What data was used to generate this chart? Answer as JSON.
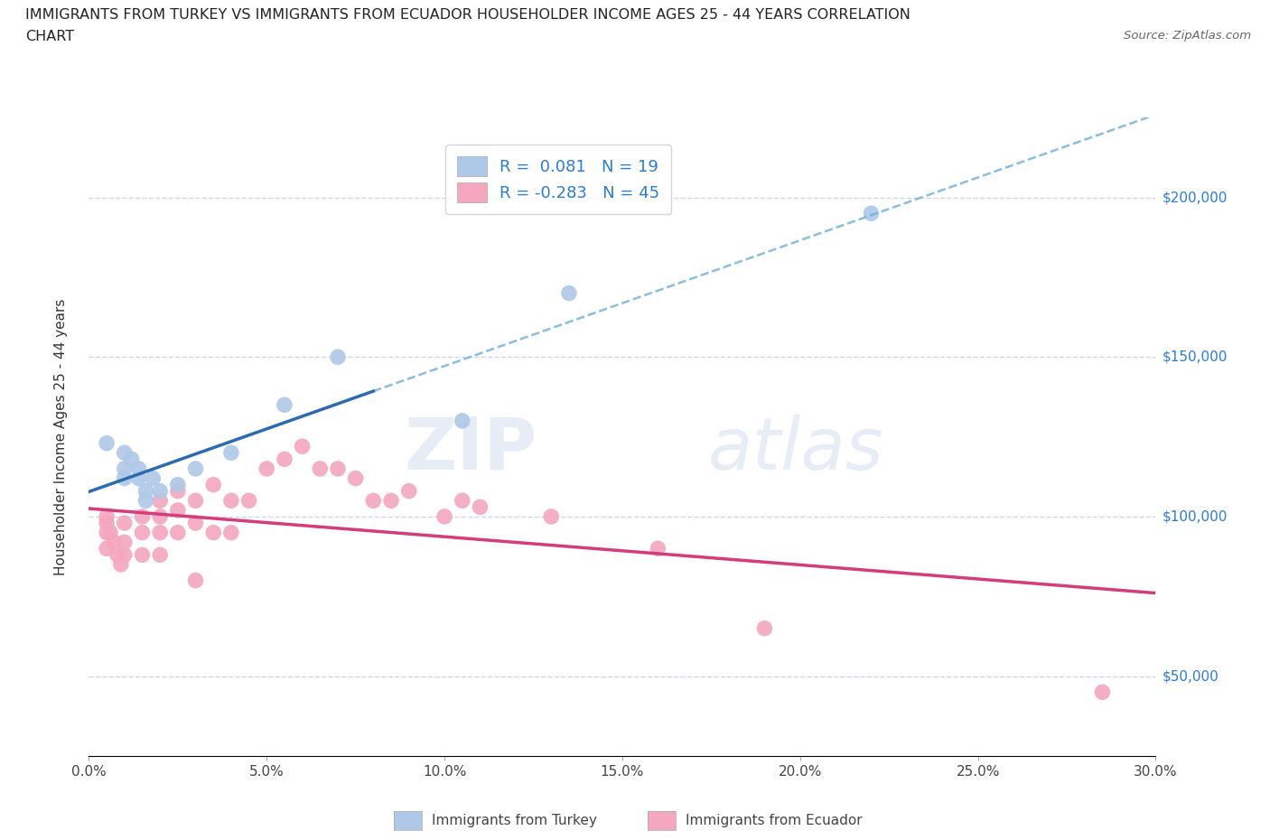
{
  "title_line1": "IMMIGRANTS FROM TURKEY VS IMMIGRANTS FROM ECUADOR HOUSEHOLDER INCOME AGES 25 - 44 YEARS CORRELATION",
  "title_line2": "CHART",
  "source_text": "Source: ZipAtlas.com",
  "ylabel": "Householder Income Ages 25 - 44 years",
  "xlim": [
    0.0,
    0.3
  ],
  "xtick_labels": [
    "0.0%",
    "5.0%",
    "10.0%",
    "15.0%",
    "20.0%",
    "25.0%",
    "30.0%"
  ],
  "xtick_values": [
    0.0,
    0.05,
    0.1,
    0.15,
    0.2,
    0.25,
    0.3
  ],
  "ytick_labels": [
    "$50,000",
    "$100,000",
    "$150,000",
    "$200,000"
  ],
  "ytick_values": [
    50000,
    100000,
    150000,
    200000
  ],
  "ylim": [
    25000,
    225000
  ],
  "turkey_color": "#aec8e8",
  "turkey_line_color": "#2b6cb0",
  "ecuador_color": "#f4a7be",
  "ecuador_line_color": "#d63b7a",
  "legend_turkey_R": " 0.081",
  "legend_turkey_N": "19",
  "legend_ecuador_R": "-0.283",
  "legend_ecuador_N": "45",
  "watermark_zip": "ZIP",
  "watermark_atlas": "atlas",
  "turkey_scatter_x": [
    0.005,
    0.01,
    0.01,
    0.01,
    0.012,
    0.014,
    0.014,
    0.016,
    0.016,
    0.018,
    0.02,
    0.025,
    0.03,
    0.04,
    0.055,
    0.07,
    0.105,
    0.135,
    0.22
  ],
  "turkey_scatter_y": [
    123000,
    120000,
    115000,
    112000,
    118000,
    115000,
    112000,
    108000,
    105000,
    112000,
    108000,
    110000,
    115000,
    120000,
    135000,
    150000,
    130000,
    170000,
    195000
  ],
  "ecuador_scatter_x": [
    0.005,
    0.005,
    0.005,
    0.005,
    0.006,
    0.007,
    0.008,
    0.009,
    0.01,
    0.01,
    0.01,
    0.015,
    0.015,
    0.015,
    0.02,
    0.02,
    0.02,
    0.02,
    0.025,
    0.025,
    0.025,
    0.03,
    0.03,
    0.03,
    0.035,
    0.035,
    0.04,
    0.04,
    0.045,
    0.05,
    0.055,
    0.06,
    0.065,
    0.07,
    0.075,
    0.08,
    0.085,
    0.09,
    0.1,
    0.105,
    0.11,
    0.13,
    0.16,
    0.19,
    0.285
  ],
  "ecuador_scatter_y": [
    100000,
    98000,
    95000,
    90000,
    95000,
    92000,
    88000,
    85000,
    98000,
    92000,
    88000,
    100000,
    95000,
    88000,
    105000,
    100000,
    95000,
    88000,
    108000,
    102000,
    95000,
    105000,
    98000,
    80000,
    110000,
    95000,
    105000,
    95000,
    105000,
    115000,
    118000,
    122000,
    115000,
    115000,
    112000,
    105000,
    105000,
    108000,
    100000,
    105000,
    103000,
    100000,
    90000,
    65000,
    45000
  ],
  "background_color": "#ffffff",
  "grid_color": "#d0d8e8"
}
